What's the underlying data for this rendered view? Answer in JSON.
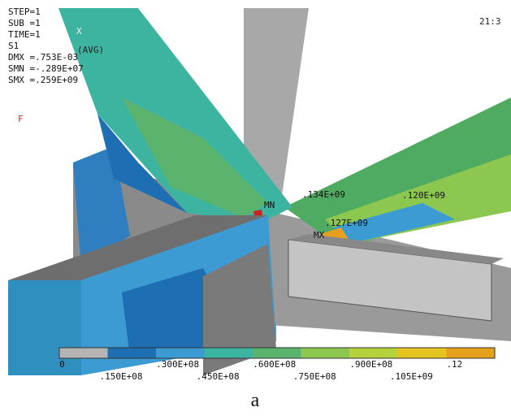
{
  "header": {
    "lines": [
      "STEP=1",
      "SUB =1",
      "TIME=1",
      "S1",
      "DMX =.753E-03",
      "SMN =-.289E+07",
      "SMX =.259E+09"
    ],
    "avg": "(AVG)",
    "flag": "F",
    "time": "21:3",
    "axis": "X"
  },
  "annotations": {
    "mn": "MN",
    "mn_value": ".134E+09",
    "mx": "MX",
    "mx_value": ".127E+09",
    "right_value": ".120E+09"
  },
  "legend": {
    "colors": [
      "#b4b4b4",
      "#1e6eb4",
      "#3c9bd2",
      "#3cb4a0",
      "#5ab46e",
      "#8cc850",
      "#b4d23c",
      "#e6c31e",
      "#e6a01e"
    ],
    "top_labels": [
      "0",
      ".300E+08",
      ".600E+08",
      ".900E+08",
      ".12"
    ],
    "bottom_labels": [
      ".150E+08",
      ".450E+08",
      ".750E+08",
      ".105E+09"
    ]
  },
  "caption": "a"
}
